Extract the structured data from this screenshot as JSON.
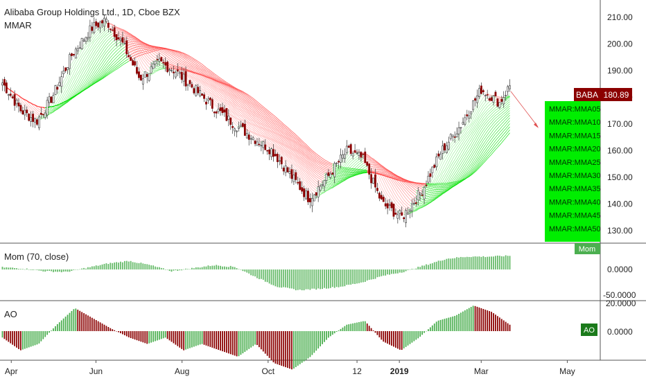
{
  "header": {
    "title": "Alibaba Group Holdings Ltd., 1D, Cboe BZX",
    "indicator": "MMAR"
  },
  "colors": {
    "up": "#4caf50",
    "down": "#8b0000",
    "ribbon_up": "#00e000",
    "ribbon_down": "#ff4040",
    "badge": "#8b0000",
    "legend_bg": "#00ee00"
  },
  "price_badge": {
    "symbol": "BABA",
    "value": "180.89"
  },
  "ribbon_legend": [
    "MMAR:MMA05",
    "MMAR:MMA10",
    "MMAR:MMA15",
    "MMAR:MMA20",
    "MMAR:MMA25",
    "MMAR:MMA30",
    "MMAR:MMA35",
    "MMAR:MMA40",
    "MMAR:MMA45",
    "MMAR:MMA50"
  ],
  "mom_panel": {
    "title": "Mom (70, close)",
    "badge": "Mom",
    "ticks": [
      "0.0000",
      "-50.0000"
    ]
  },
  "ao_panel": {
    "title": "AO",
    "badge": "AO",
    "ticks": [
      "20.0000",
      "0.0000"
    ]
  },
  "chart_data": {
    "type": "line",
    "price_axis": {
      "ticks": [
        "210.00",
        "200.00",
        "190.00",
        "180.00",
        "170.00",
        "160.00",
        "150.00",
        "140.00",
        "130.00"
      ],
      "ylim": [
        125,
        213
      ]
    },
    "x_ticks": [
      "Apr",
      "Jun",
      "Aug",
      "Oct",
      "12",
      "2019",
      "Mar",
      "May"
    ],
    "close_path": {
      "x": [
        "2018-03-26",
        "2018-04-09",
        "2018-04-20",
        "2018-05-01",
        "2018-05-15",
        "2018-05-29",
        "2018-06-08",
        "2018-06-20",
        "2018-07-02",
        "2018-07-16",
        "2018-07-27",
        "2018-08-10",
        "2018-08-24",
        "2018-09-07",
        "2018-09-20",
        "2018-10-04",
        "2018-10-18",
        "2018-10-30",
        "2018-11-12",
        "2018-11-26",
        "2018-12-07",
        "2018-12-21",
        "2019-01-04",
        "2019-01-18",
        "2019-02-01",
        "2019-02-15",
        "2019-03-01",
        "2019-03-14",
        "2019-03-22"
      ],
      "y": [
        186,
        175,
        171,
        180,
        196,
        206,
        209,
        200,
        187,
        193,
        190,
        183,
        176,
        170,
        165,
        160,
        150,
        142,
        150,
        160,
        157,
        140,
        135,
        145,
        160,
        170,
        183,
        178,
        185
      ]
    },
    "mom_values": [
      5,
      2,
      -4,
      -6,
      4,
      14,
      20,
      10,
      -4,
      3,
      10,
      6,
      -18,
      -40,
      -48,
      -45,
      -40,
      -30,
      -15,
      -5,
      10,
      25,
      30,
      30,
      32
    ],
    "ao_values": [
      -5,
      -15,
      -10,
      5,
      18,
      10,
      2,
      -5,
      -10,
      -5,
      -15,
      -10,
      -15,
      -20,
      -10,
      -25,
      -30,
      -20,
      -5,
      5,
      8,
      -8,
      -15,
      -5,
      8,
      12,
      20,
      15,
      5
    ]
  }
}
